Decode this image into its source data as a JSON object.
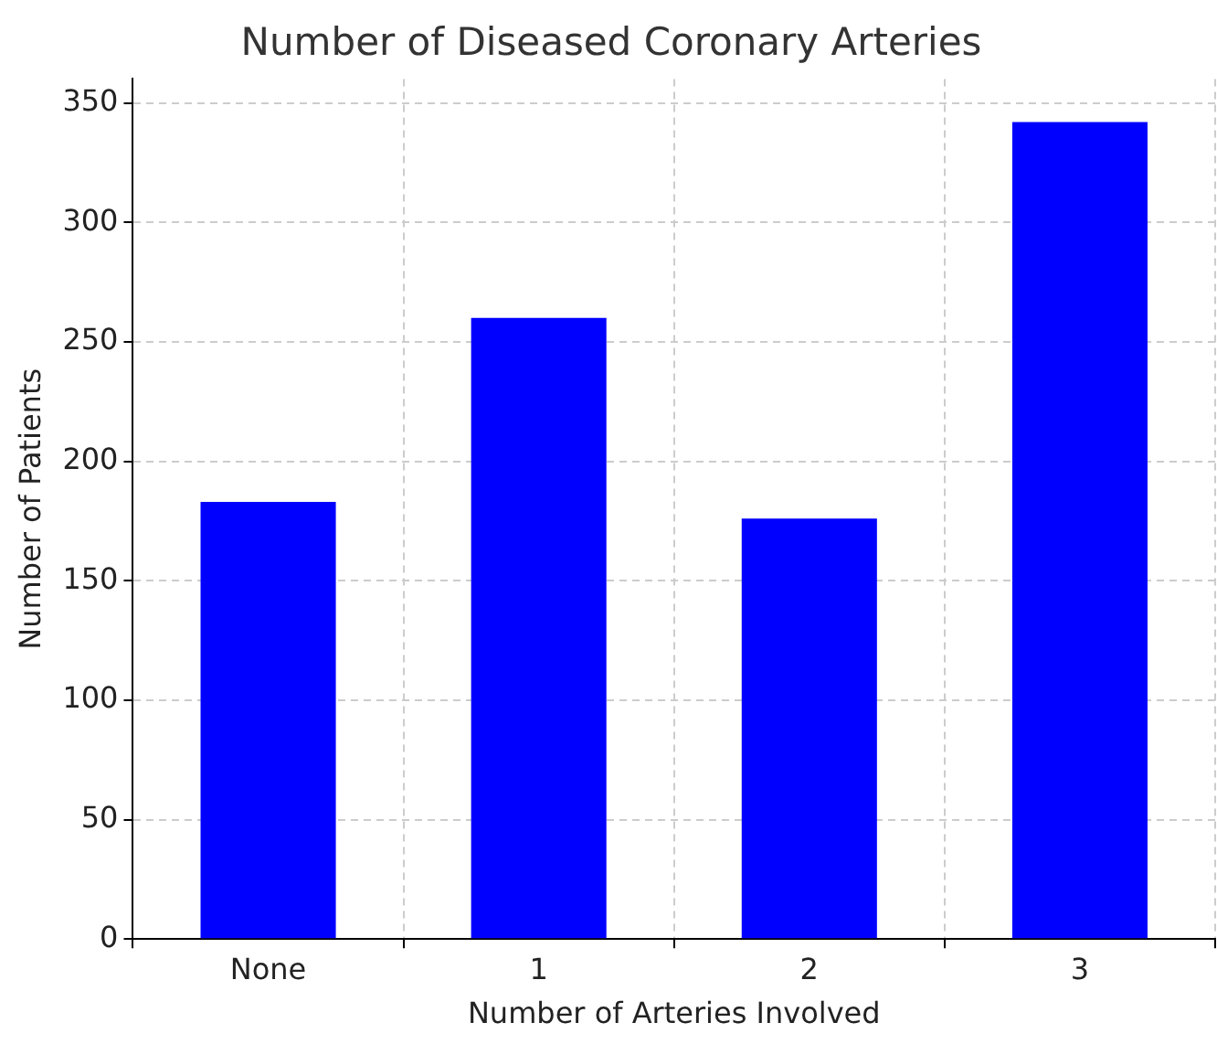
{
  "chart_data": {
    "type": "bar",
    "title": "Number of Diseased Coronary Arteries",
    "xlabel": "Number of Arteries Involved",
    "ylabel": "Number of Patients",
    "categories": [
      "None",
      "1",
      "2",
      "3"
    ],
    "values": [
      183,
      260,
      176,
      342
    ],
    "color": "#0000ff",
    "ylim": [
      0,
      360
    ],
    "yticks": [
      0,
      50,
      100,
      150,
      200,
      250,
      300,
      350
    ],
    "grid": true
  }
}
